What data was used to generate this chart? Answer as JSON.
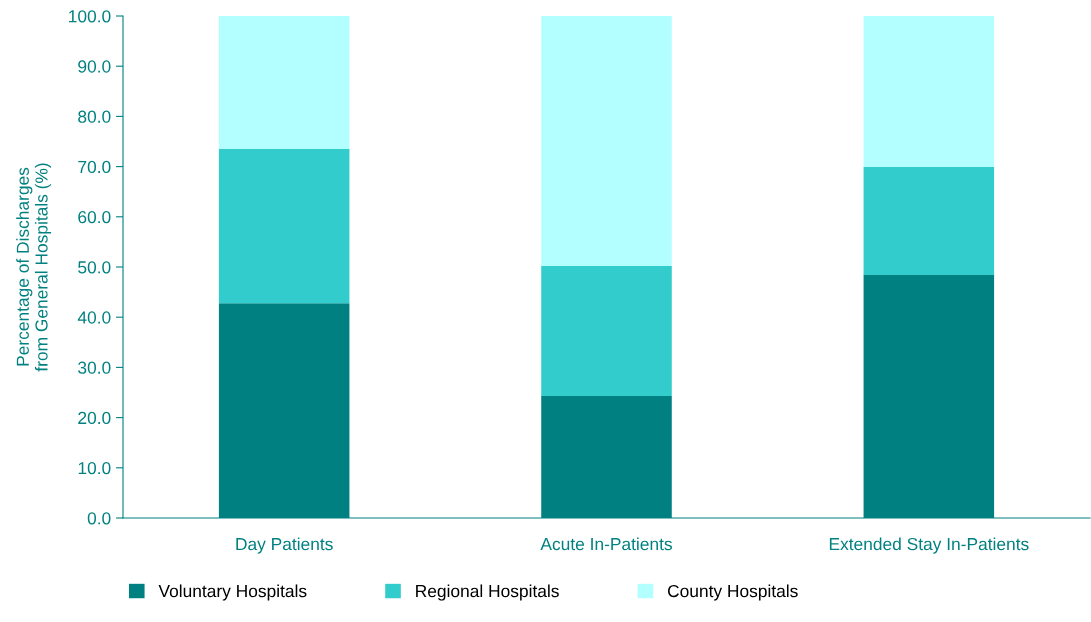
{
  "chart_data": {
    "type": "bar",
    "stacked": true,
    "ylabel": "Percentage of Discharges\nfrom General Hospitals (%)",
    "categories": [
      "Day Patients",
      "Acute In-Patients",
      "Extended Stay In-Patients"
    ],
    "series": [
      {
        "name": "Voluntary Hospitals",
        "color": "#008080",
        "values": [
          42.8,
          24.3,
          48.4
        ]
      },
      {
        "name": "Regional Hospitals",
        "color": "#33cccc",
        "values": [
          30.7,
          25.9,
          21.5
        ]
      },
      {
        "name": "County Hospitals",
        "color": "#b3ffff",
        "values": [
          26.5,
          49.8,
          30.1
        ]
      }
    ],
    "ylim": [
      0,
      100
    ],
    "yticks": [
      {
        "value": 0,
        "label": "0.0"
      },
      {
        "value": 10,
        "label": "10.0"
      },
      {
        "value": 20,
        "label": "20.0"
      },
      {
        "value": 30,
        "label": "30.0"
      },
      {
        "value": 40,
        "label": "40.0"
      },
      {
        "value": 50,
        "label": "50.0"
      },
      {
        "value": 60,
        "label": "60.0"
      },
      {
        "value": 70,
        "label": "70.0"
      },
      {
        "value": 80,
        "label": "80.0"
      },
      {
        "value": 90,
        "label": "90.0"
      },
      {
        "value": 100,
        "label": "100.0"
      }
    ],
    "grid": false,
    "legend": "bottom left"
  }
}
